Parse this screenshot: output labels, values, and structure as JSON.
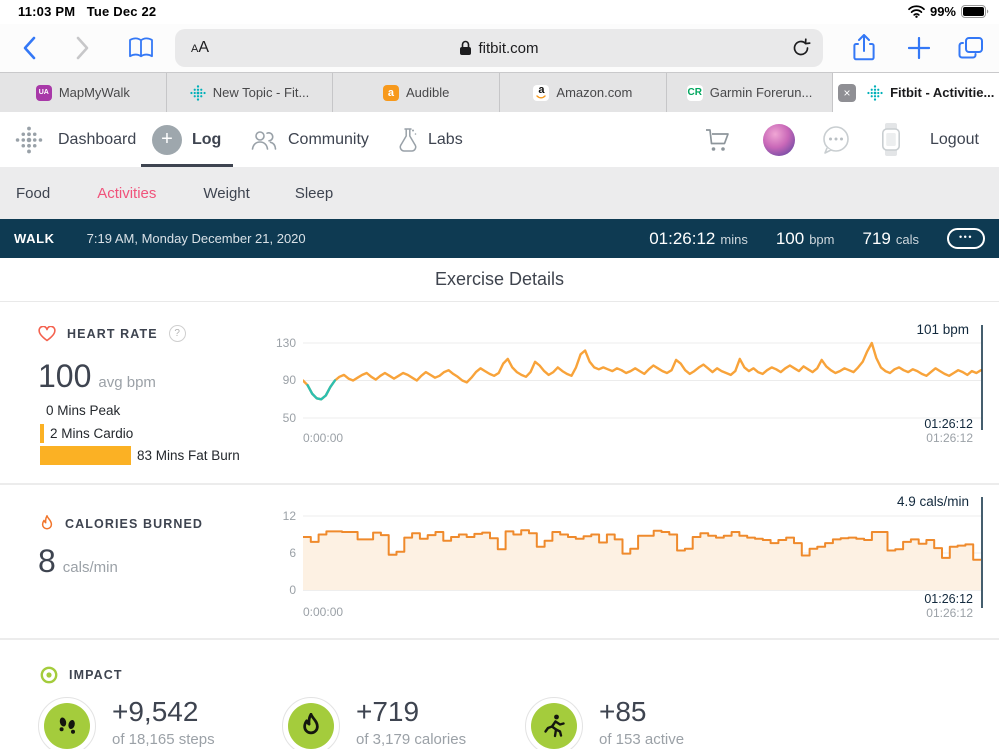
{
  "colors": {
    "navy": "#0e3a52",
    "pink": "#f0537b",
    "amber": "#fbb124",
    "hr_line": "#f8a33a",
    "hr_low": "#2cbfb0",
    "cal_line": "#ef8a2c",
    "cal_fill": "#fdf1e3",
    "lime": "#a4cc3c",
    "blue": "#3478f6"
  },
  "status_bar": {
    "time": "11:03 PM",
    "date": "Tue Dec 22",
    "battery": "99%"
  },
  "toolbar": {
    "reader_small": "A",
    "reader_big": "A",
    "url": "fitbit.com"
  },
  "tabs": [
    {
      "label": "MapMyWalk",
      "favicon": "mapmywalk"
    },
    {
      "label": "New Topic - Fit...",
      "favicon": "fitbit"
    },
    {
      "label": "Audible",
      "favicon": "audible"
    },
    {
      "label": "Amazon.com",
      "favicon": "amazon"
    },
    {
      "label": "Garmin Forerun...",
      "favicon": "garmin"
    },
    {
      "label": "Fitbit - Activitie...",
      "favicon": "fitbit"
    }
  ],
  "icons": {
    "plus": "+",
    "close": "×",
    "ellipsis": "•••",
    "help": "?",
    "ua": "UA",
    "audible_glyph": "a",
    "amazon_glyph": "a",
    "garmin_glyph": "CR"
  },
  "nav": {
    "dashboard": "Dashboard",
    "log": "Log",
    "community": "Community",
    "labs": "Labs",
    "logout": "Logout"
  },
  "subnav": {
    "food": "Food",
    "activities": "Activities",
    "weight": "Weight",
    "sleep": "Sleep"
  },
  "activity_bar": {
    "type": "WALK",
    "datetime": "7:19 AM, Monday December 21, 2020",
    "duration": "01:26:12",
    "duration_unit": "mins",
    "bpm": "100",
    "bpm_unit": "bpm",
    "cals": "719",
    "cals_unit": "cals"
  },
  "page": {
    "title": "Exercise Details"
  },
  "heart_rate": {
    "label": "HEART RATE",
    "avg": "100",
    "avg_unit": "avg bpm",
    "zones": [
      "0 Mins Peak",
      "2 Mins Cardio",
      "83 Mins Fat Burn"
    ]
  },
  "calories": {
    "label": "CALORIES BURNED",
    "value": "8",
    "unit": "cals/min"
  },
  "impact": {
    "label": "IMPACT",
    "stats": [
      {
        "value": "+9,542",
        "sub": "of 18,165 steps",
        "icon": "footprints"
      },
      {
        "value": "+719",
        "sub": "of 3,179 calories",
        "icon": "flame"
      },
      {
        "value": "+85",
        "sub": "of 153 active",
        "icon": "runner"
      }
    ]
  },
  "chart_data": [
    {
      "type": "line",
      "title": "Heart Rate",
      "ylabel": "bpm",
      "yticks": [
        "130",
        "90",
        "50"
      ],
      "ylim": [
        50,
        140
      ],
      "x_start": "0:00:00",
      "x_end": "01:26:12",
      "cursor_label": "101 bpm",
      "cursor_time": "01:26:12",
      "low_segment": [
        1,
        7
      ],
      "values": [
        90,
        85,
        76,
        71,
        70,
        74,
        83,
        90,
        94,
        96,
        92,
        90,
        93,
        96,
        98,
        94,
        91,
        95,
        98,
        95,
        92,
        95,
        98,
        96,
        93,
        90,
        95,
        99,
        96,
        93,
        95,
        99,
        101,
        97,
        94,
        90,
        88,
        93,
        99,
        103,
        100,
        97,
        95,
        98,
        108,
        113,
        104,
        99,
        96,
        94,
        99,
        110,
        106,
        100,
        96,
        99,
        104,
        100,
        97,
        95,
        104,
        118,
        122,
        110,
        104,
        102,
        104,
        102,
        100,
        103,
        101,
        98,
        100,
        103,
        100,
        97,
        102,
        106,
        103,
        100,
        98,
        101,
        112,
        108,
        101,
        97,
        100,
        104,
        107,
        103,
        99,
        103,
        100,
        98,
        96,
        100,
        113,
        104,
        100,
        103,
        99,
        97,
        101,
        104,
        102,
        99,
        103,
        106,
        103,
        100,
        105,
        102,
        99,
        103,
        112,
        105,
        101,
        98,
        100,
        103,
        101,
        99,
        104,
        110,
        121,
        130,
        114,
        104,
        100,
        98,
        102,
        104,
        101,
        99,
        102,
        100,
        97,
        95,
        99,
        103,
        100,
        97,
        95,
        98,
        101,
        99,
        96,
        100,
        98,
        101
      ]
    },
    {
      "type": "step-area",
      "title": "Calories Burned",
      "ylabel": "cals/min",
      "yticks": [
        "12",
        "6",
        "0"
      ],
      "ylim": [
        0,
        12
      ],
      "x_start": "0:00:00",
      "x_end": "01:26:12",
      "cursor_label": "4.9 cals/min",
      "cursor_time": "01:26:12",
      "values": [
        8.6,
        7.8,
        9.0,
        9.5,
        9.5,
        9.4,
        9.4,
        8.2,
        8.2,
        9.3,
        8.9,
        5.7,
        6.2,
        8.5,
        9.2,
        8.3,
        8.9,
        9.4,
        8.0,
        8.6,
        9.0,
        8.6,
        9.1,
        9.3,
        8.4,
        6.6,
        9.5,
        9.0,
        9.7,
        9.2,
        7.0,
        8.0,
        9.4,
        9.0,
        8.6,
        8.3,
        8.7,
        9.0,
        7.7,
        9.0,
        8.2,
        5.9,
        6.7,
        8.8,
        8.8,
        9.6,
        9.4,
        9.0,
        6.4,
        6.7,
        8.6,
        9.2,
        8.8,
        8.5,
        8.8,
        9.4,
        8.8,
        8.5,
        8.3,
        8.1,
        7.6,
        8.1,
        8.5,
        7.6,
        5.6,
        6.7,
        7.0,
        7.6,
        8.2,
        8.4,
        8.5,
        8.3,
        8.1,
        9.4,
        9.4,
        6.4,
        6.6,
        7.8,
        8.2,
        7.5,
        8.1,
        6.8,
        5.2,
        7.0,
        7.2,
        7.4,
        4.9
      ]
    }
  ]
}
